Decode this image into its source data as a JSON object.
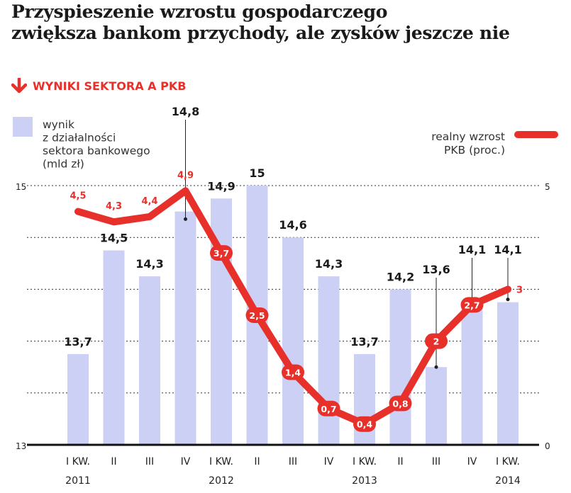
{
  "header": {
    "title_line1": "Przyspieszenie wzrostu gospodarczego",
    "title_line2": "zwiększa bankom przychody, ale zysków jeszcze nie",
    "section_label": "WYNIKI SEKTORA A PKB"
  },
  "colors": {
    "bar": "#cdd0f5",
    "line": "#e8302b",
    "accent": "#e8302b",
    "text": "#1a1a1a"
  },
  "chart_data": {
    "type": "bar",
    "categories": [
      "I KW. 2011",
      "II",
      "III",
      "IV",
      "I KW. 2012",
      "II",
      "III",
      "IV",
      "I KW. 2013",
      "II",
      "III",
      "IV",
      "I KW. 2014"
    ],
    "x_tick_labels": [
      "I KW.",
      "II",
      "III",
      "IV",
      "I KW.",
      "II",
      "III",
      "IV",
      "I KW.",
      "II",
      "III",
      "IV",
      "I KW."
    ],
    "x_year_labels": [
      {
        "index": 0,
        "label": "2011"
      },
      {
        "index": 4,
        "label": "2012"
      },
      {
        "index": 8,
        "label": "2013"
      },
      {
        "index": 12,
        "label": "2014"
      }
    ],
    "series": [
      {
        "name": "wynik z działalności sektora bankowego (mld zł)",
        "type": "bar",
        "axis": "left",
        "values": [
          13.7,
          14.5,
          14.3,
          14.8,
          14.9,
          15,
          14.6,
          14.3,
          13.7,
          14.2,
          13.6,
          14.1,
          14.1
        ],
        "labels": [
          "13,7",
          "14,5",
          "14,3",
          "14,8",
          "14,9",
          "15",
          "14,6",
          "14,3",
          "13,7",
          "14,2",
          "13,6",
          "14,1",
          "14,1"
        ]
      },
      {
        "name": "realny wzrost PKB (proc.)",
        "type": "line",
        "axis": "right",
        "values": [
          4.5,
          4.3,
          4.4,
          4.9,
          3.7,
          2.5,
          1.4,
          0.7,
          0.4,
          0.8,
          2,
          2.7,
          3
        ],
        "labels": [
          "4,5",
          "4,3",
          "4,4",
          "4,9",
          "3,7",
          "2,5",
          "1,4",
          "0,7",
          "0,4",
          "0,8",
          "2",
          "2,7",
          "3"
        ]
      }
    ],
    "legend": {
      "bar_label": [
        "wynik",
        "z działalności",
        "sektora bankowego",
        "(mld zł)"
      ],
      "line_label": [
        "realny wzrost",
        "PKB (proc.)"
      ]
    },
    "y_left": {
      "min": 13,
      "max": 15,
      "ticks": [
        "13",
        "15"
      ]
    },
    "y_right": {
      "min": 0,
      "max": 5,
      "ticks": [
        "0",
        "5"
      ]
    },
    "grid": true
  }
}
